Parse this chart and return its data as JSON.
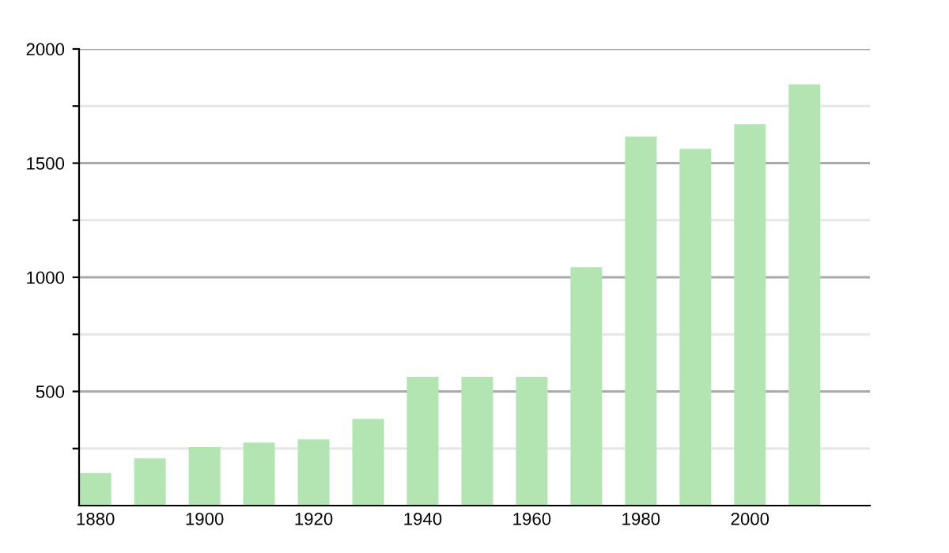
{
  "chart_data": {
    "type": "bar",
    "x": [
      1880,
      1890,
      1900,
      1910,
      1920,
      1930,
      1940,
      1950,
      1960,
      1970,
      1980,
      1990,
      2000,
      2010
    ],
    "values": [
      143,
      207,
      256,
      276,
      290,
      380,
      564,
      564,
      564,
      1044,
      1617,
      1562,
      1670,
      1845
    ],
    "color": "#b3e5b3",
    "xlim": [
      1877,
      2022
    ],
    "xticks": [
      1880,
      1900,
      1920,
      1940,
      1960,
      1980,
      2000
    ],
    "ylim": [
      0,
      2000
    ],
    "yticks": [
      {
        "value": 250,
        "label": null
      },
      500,
      {
        "value": 750,
        "label": null
      },
      1000,
      {
        "value": 1250,
        "label": null
      },
      1500,
      {
        "value": 1750,
        "label": null
      },
      2000
    ],
    "grid": "y"
  }
}
